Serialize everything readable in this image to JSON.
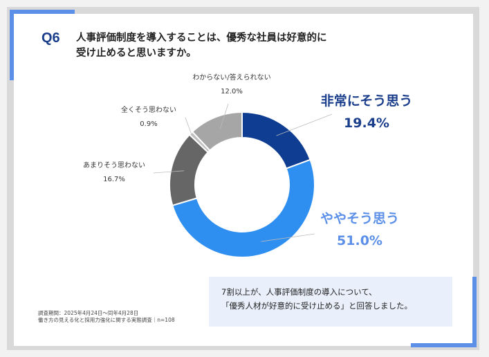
{
  "question": {
    "number": "Q6",
    "line1": "人事評価制度を導入することは、優秀な社員は好意的に",
    "line2": "受け止めると思いますか。"
  },
  "chart_data": {
    "type": "pie",
    "donut": true,
    "title": "",
    "categories": [
      "非常にそう思う",
      "ややそう思う",
      "あまりそう思わない",
      "全くそう思わない",
      "わからない/答えられない"
    ],
    "values": [
      19.4,
      51.0,
      16.7,
      0.9,
      12.0
    ],
    "labels": [
      "19.4%",
      "51.0%",
      "16.7%",
      "0.9%",
      "12.0%"
    ],
    "colors": [
      "#0f3d91",
      "#2f8ff0",
      "#666666",
      "#bfbfbf",
      "#a6a6a6"
    ]
  },
  "note": {
    "line1": "7割以上が、人事評価制度の導入について、",
    "line2": "「優秀人材が好意的に受け止める」と回答しました。"
  },
  "footer": {
    "line1": "調査期間：2025年4月24日～同年4月28日",
    "line2": "働き方の見える化と採用力強化に関する実態調査｜n=108"
  }
}
